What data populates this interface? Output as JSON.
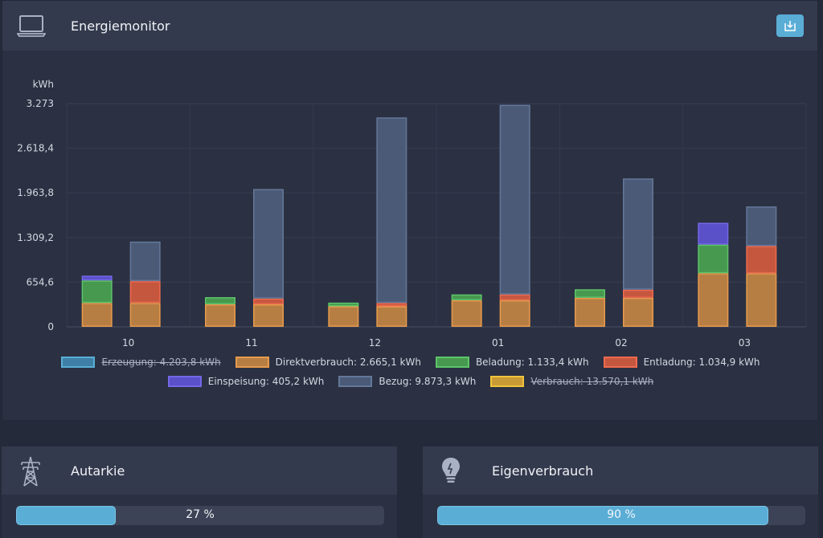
{
  "header": {
    "title": "Energiemonitor"
  },
  "chart_data": {
    "type": "bar",
    "ylabel": "kWh",
    "ylim": [
      0,
      3273
    ],
    "yticks": [
      "0",
      "654,6",
      "1.309,2",
      "1.963,8",
      "2.618,4",
      "3.273"
    ],
    "categories": [
      "10",
      "11",
      "12",
      "01",
      "02",
      "03"
    ],
    "stacks": [
      {
        "stack": "left",
        "series": [
          {
            "name": "Direktverbrauch",
            "values": [
              350,
              330,
              300,
              390,
              425,
              785
            ],
            "color": "#b77e44",
            "border": "#e89a4c"
          },
          {
            "name": "Beladung",
            "values": [
              330,
              105,
              55,
              85,
              125,
              420
            ],
            "color": "#46994f",
            "border": "#5ec46a"
          },
          {
            "name": "Einspeisung",
            "values": [
              70,
              0,
              0,
              0,
              0,
              320
            ],
            "color": "#5a50c8",
            "border": "#7468e6"
          }
        ]
      },
      {
        "stack": "right",
        "series": [
          {
            "name": "Direktverbrauch",
            "values": [
              350,
              330,
              300,
              390,
              425,
              785
            ],
            "color": "#b77e44",
            "border": "#e89a4c"
          },
          {
            "name": "Entladung",
            "values": [
              320,
              85,
              50,
              85,
              120,
              400
            ],
            "color": "#c6573f",
            "border": "#ee6a4f"
          },
          {
            "name": "Bezug",
            "values": [
              580,
              1605,
              2720,
              2780,
              1630,
              580
            ],
            "color": "#4a5a77",
            "border": "#64789a"
          }
        ]
      }
    ],
    "legend": [
      {
        "label": "Erzeugung: 4.203,8 kWh",
        "color": "#3f7fa6",
        "border": "#5aaed6",
        "hidden": true
      },
      {
        "label": "Direktverbrauch: 2.665,1 kWh",
        "color": "#b77e44",
        "border": "#e89a4c",
        "hidden": false
      },
      {
        "label": "Beladung: 1.133,4 kWh",
        "color": "#46994f",
        "border": "#5ec46a",
        "hidden": false
      },
      {
        "label": "Entladung: 1.034,9 kWh",
        "color": "#c6573f",
        "border": "#ee6a4f",
        "hidden": false
      },
      {
        "label": "Einspeisung: 405,2 kWh",
        "color": "#5a50c8",
        "border": "#7468e6",
        "hidden": false
      },
      {
        "label": "Bezug: 9.873,3 kWh",
        "color": "#4a5a77",
        "border": "#64789a",
        "hidden": false
      },
      {
        "label": "Verbrauch: 13.570,1 kWh",
        "color": "#c79a35",
        "border": "#f0c33c",
        "hidden": true
      }
    ],
    "legend_placement": "bottom",
    "grid": true
  },
  "autarkie": {
    "title": "Autarkie",
    "percent": 27,
    "label": "27 %"
  },
  "eigenverbrauch": {
    "title": "Eigenverbrauch",
    "percent": 90,
    "label": "90 %"
  }
}
